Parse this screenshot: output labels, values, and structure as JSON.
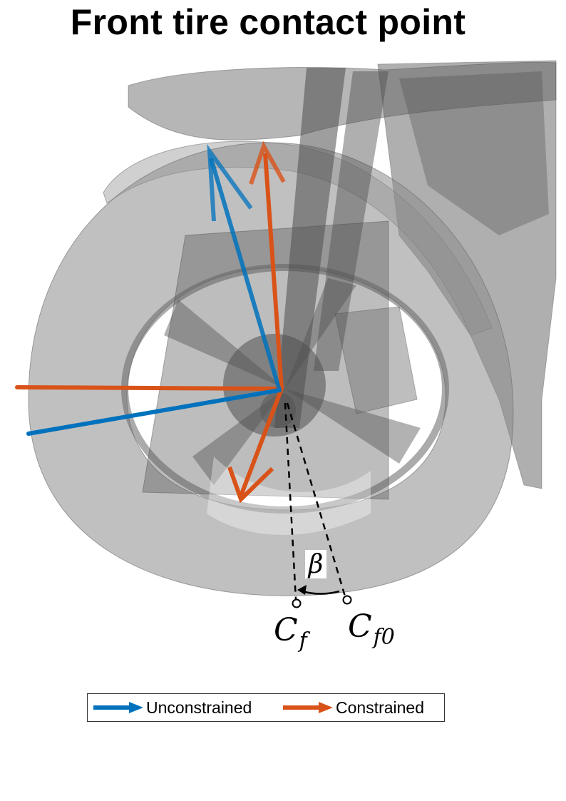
{
  "title": "Front tire contact point",
  "labels": {
    "angle": "β",
    "contact_point": {
      "base": "C",
      "sub": "f"
    },
    "contact_point_reference": {
      "base": "C",
      "sub": "f0"
    }
  },
  "legend": [
    {
      "label": "Unconstrained",
      "color": "#0072BD"
    },
    {
      "label": "Constrained",
      "color": "#D95319"
    }
  ],
  "colors": {
    "unconstrained": "#0072BD",
    "constrained": "#D95319",
    "model_gray": "#7a7a7a",
    "background": "#ffffff"
  }
}
